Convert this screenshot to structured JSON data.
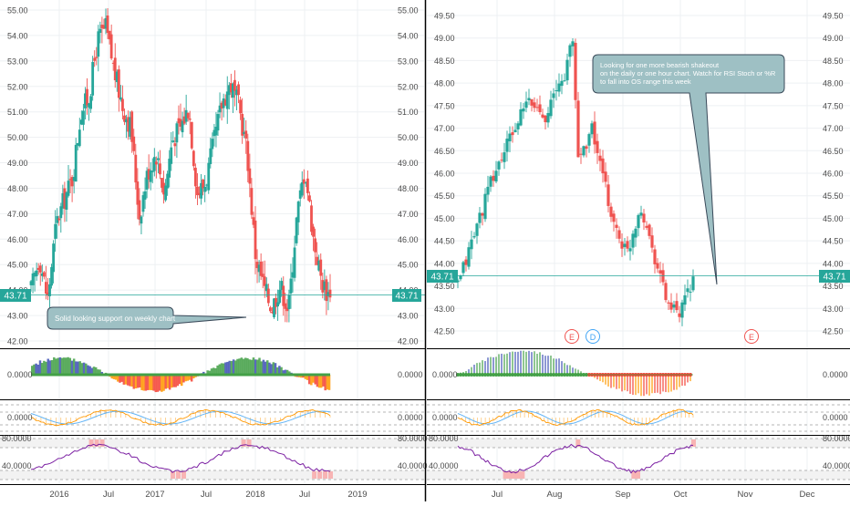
{
  "colors": {
    "up": "#26a69a",
    "down": "#ef5350",
    "price_line": "#26a69a",
    "grid": "#eef0f3",
    "axis_text": "#4a4a4a",
    "callout_fill": "#9ec0c4",
    "callout_border": "#3a4a5a",
    "osc_green": "#43a047",
    "osc_blue": "#3f51b5",
    "osc_red": "#f44336",
    "osc_orange": "#ff9800",
    "stoch_line": "#7b1fa2",
    "stoch_hi": "#c62828",
    "stoch_lo": "#1b5e20",
    "earnings": "#ef5350",
    "dividend": "#42a5f5"
  },
  "left_chart": {
    "y_ticks": [
      "55.00",
      "54.00",
      "53.00",
      "52.00",
      "51.00",
      "50.00",
      "49.00",
      "48.00",
      "47.00",
      "46.00",
      "45.00",
      "44.00",
      "43.00",
      "42.00"
    ],
    "x_ticks": [
      "2016",
      "Jul",
      "2017",
      "Jul",
      "2018",
      "Jul",
      "2019"
    ],
    "last_price": "43.71",
    "annotation": "Solid looking support on weekly chart",
    "osc_zero": "0.0000",
    "rsi_zero": "0.0000",
    "stoch_hi": "80.0000",
    "stoch_lo": "40.0000"
  },
  "right_chart": {
    "y_ticks": [
      "49.50",
      "49.00",
      "48.50",
      "48.00",
      "47.50",
      "47.00",
      "46.50",
      "46.00",
      "45.50",
      "45.00",
      "44.50",
      "44.00",
      "43.50",
      "43.00",
      "42.50"
    ],
    "x_ticks": [
      "Jul",
      "Aug",
      "Sep",
      "Oct",
      "Nov",
      "Dec"
    ],
    "last_price": "43.71",
    "annotation_lines": [
      "Looking for one more bearish shakeout",
      "on the daily or one hour chart.    Watch for RSI Stoch or %R",
      "to fall into OS range this week"
    ],
    "event_markers": [
      "E",
      "D",
      "E"
    ],
    "osc_zero": "0.0000",
    "rsi_zero": "0.0000",
    "stoch_hi": "80.0000",
    "stoch_lo": "40.0000"
  },
  "chart_data": [
    {
      "type": "candlestick",
      "title": "",
      "timeframe": "weekly",
      "x_ticks": [
        "2016",
        "Jul",
        "2017",
        "Jul",
        "2018",
        "Jul",
        "2019"
      ],
      "ylim": [
        41.7,
        55.3
      ],
      "last_price": 43.71,
      "close_path": [
        {
          "x": "2015-10",
          "y": 44.0
        },
        {
          "x": "2015-11",
          "y": 45.3
        },
        {
          "x": "2015-12",
          "y": 43.6
        },
        {
          "x": "2016-01",
          "y": 46.6
        },
        {
          "x": "2016-02",
          "y": 47.6
        },
        {
          "x": "2016-03",
          "y": 48.4
        },
        {
          "x": "2016-04",
          "y": 51.0
        },
        {
          "x": "2016-05",
          "y": 51.6
        },
        {
          "x": "2016-06",
          "y": 53.8
        },
        {
          "x": "2016-07",
          "y": 54.3
        },
        {
          "x": "2016-08",
          "y": 52.6
        },
        {
          "x": "2016-09",
          "y": 51.2
        },
        {
          "x": "2016-10",
          "y": 50.4
        },
        {
          "x": "2016-11",
          "y": 46.9
        },
        {
          "x": "2016-12",
          "y": 48.6
        },
        {
          "x": "2017-01",
          "y": 49.4
        },
        {
          "x": "2017-02",
          "y": 47.8
        },
        {
          "x": "2017-03",
          "y": 49.9
        },
        {
          "x": "2017-04",
          "y": 50.4
        },
        {
          "x": "2017-05",
          "y": 51.2
        },
        {
          "x": "2017-06",
          "y": 47.8
        },
        {
          "x": "2017-07",
          "y": 48.2
        },
        {
          "x": "2017-08",
          "y": 49.8
        },
        {
          "x": "2017-09",
          "y": 51.4
        },
        {
          "x": "2017-10",
          "y": 52.1
        },
        {
          "x": "2017-11",
          "y": 51.2
        },
        {
          "x": "2017-12",
          "y": 49.4
        },
        {
          "x": "2018-01",
          "y": 45.3
        },
        {
          "x": "2018-02",
          "y": 44.1
        },
        {
          "x": "2018-03",
          "y": 43.3
        },
        {
          "x": "2018-04",
          "y": 44.2
        },
        {
          "x": "2018-05",
          "y": 43.2
        },
        {
          "x": "2018-06",
          "y": 46.9
        },
        {
          "x": "2018-07",
          "y": 48.8
        },
        {
          "x": "2018-08",
          "y": 46.0
        },
        {
          "x": "2018-09",
          "y": 44.3
        },
        {
          "x": "2018-10",
          "y": 43.71
        }
      ]
    },
    {
      "type": "candlestick",
      "title": "",
      "timeframe": "daily",
      "x_ticks": [
        "Jul",
        "Aug",
        "Sep",
        "Oct",
        "Nov",
        "Dec"
      ],
      "ylim": [
        42.25,
        49.75
      ],
      "last_price": 43.71,
      "close_path": [
        {
          "x": "2018-06-12",
          "y": 43.5
        },
        {
          "x": "2018-06-20",
          "y": 44.6
        },
        {
          "x": "2018-06-29",
          "y": 45.8
        },
        {
          "x": "2018-07-09",
          "y": 46.8
        },
        {
          "x": "2018-07-18",
          "y": 47.6
        },
        {
          "x": "2018-07-27",
          "y": 47.3
        },
        {
          "x": "2018-08-06",
          "y": 48.2
        },
        {
          "x": "2018-08-10",
          "y": 49.0
        },
        {
          "x": "2018-08-13",
          "y": 46.3
        },
        {
          "x": "2018-08-20",
          "y": 47.0
        },
        {
          "x": "2018-08-24",
          "y": 46.2
        },
        {
          "x": "2018-08-31",
          "y": 44.9
        },
        {
          "x": "2018-09-07",
          "y": 44.2
        },
        {
          "x": "2018-09-14",
          "y": 45.3
        },
        {
          "x": "2018-09-21",
          "y": 44.2
        },
        {
          "x": "2018-09-28",
          "y": 43.1
        },
        {
          "x": "2018-10-04",
          "y": 42.8
        },
        {
          "x": "2018-10-08",
          "y": 43.3
        },
        {
          "x": "2018-10-11",
          "y": 43.71
        }
      ]
    }
  ]
}
